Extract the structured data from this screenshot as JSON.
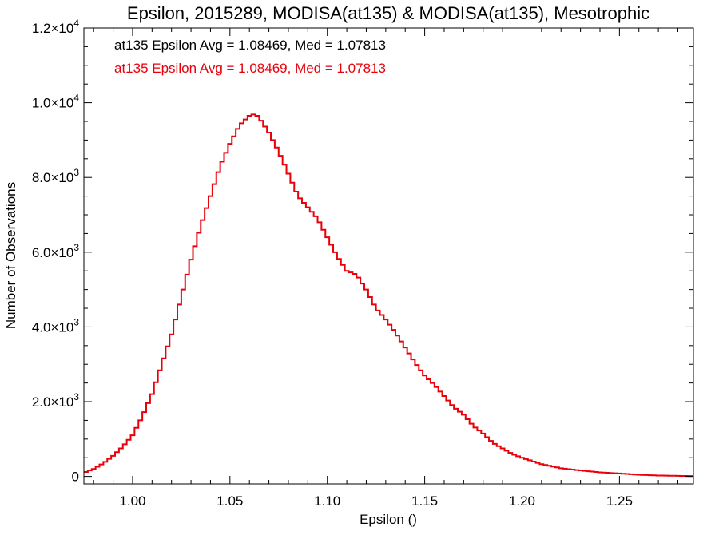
{
  "chart_data": {
    "type": "histogram",
    "title": "Epsilon, 2015289, MODISA(at135) & MODISA(at135), Mesotrophic",
    "xlabel": "Epsilon ()",
    "ylabel": "Number of Observations",
    "xlim": [
      0.975,
      1.288
    ],
    "ylim": [
      -200,
      12000
    ],
    "x_ticks": [
      {
        "value": 1.0,
        "label": "1.00"
      },
      {
        "value": 1.05,
        "label": "1.05"
      },
      {
        "value": 1.1,
        "label": "1.10"
      },
      {
        "value": 1.15,
        "label": "1.15"
      },
      {
        "value": 1.2,
        "label": "1.20"
      },
      {
        "value": 1.25,
        "label": "1.25"
      }
    ],
    "y_ticks": [
      {
        "value": 0,
        "mantissa": "0",
        "exponent": ""
      },
      {
        "value": 2000,
        "mantissa": "2.0×10",
        "exponent": "3"
      },
      {
        "value": 4000,
        "mantissa": "4.0×10",
        "exponent": "3"
      },
      {
        "value": 6000,
        "mantissa": "6.0×10",
        "exponent": "3"
      },
      {
        "value": 8000,
        "mantissa": "8.0×10",
        "exponent": "3"
      },
      {
        "value": 10000,
        "mantissa": "1.0×10",
        "exponent": "4"
      },
      {
        "value": 12000,
        "mantissa": "1.2×10",
        "exponent": "4"
      }
    ],
    "legend": [
      {
        "text": "at135 Epsilon Avg = 1.08469, Med = 1.07813",
        "color": "#000000"
      },
      {
        "text": "at135 Epsilon Avg = 1.08469, Med = 1.07813",
        "color": "#e8000b"
      }
    ],
    "series": [
      {
        "color": "#e8000b",
        "bin_width": 0.002,
        "bins_x": [
          0.975,
          0.98,
          0.985,
          0.99,
          0.995,
          1.0,
          1.005,
          1.01,
          1.015,
          1.02,
          1.025,
          1.03,
          1.035,
          1.04,
          1.045,
          1.05,
          1.055,
          1.06,
          1.063,
          1.065,
          1.07,
          1.075,
          1.08,
          1.085,
          1.09,
          1.095,
          1.1,
          1.105,
          1.11,
          1.115,
          1.12,
          1.125,
          1.13,
          1.135,
          1.14,
          1.145,
          1.15,
          1.155,
          1.16,
          1.165,
          1.17,
          1.175,
          1.18,
          1.185,
          1.19,
          1.195,
          1.2,
          1.21,
          1.22,
          1.23,
          1.24,
          1.25,
          1.26,
          1.27,
          1.288
        ],
        "counts": [
          100,
          200,
          350,
          550,
          800,
          1100,
          1600,
          2200,
          3000,
          3800,
          4800,
          5800,
          6700,
          7500,
          8300,
          8900,
          9400,
          9650,
          9700,
          9600,
          9200,
          8700,
          8100,
          7500,
          7200,
          6900,
          6400,
          5900,
          5500,
          5400,
          5000,
          4500,
          4200,
          3850,
          3450,
          3050,
          2700,
          2450,
          2150,
          1850,
          1650,
          1350,
          1150,
          900,
          750,
          600,
          500,
          330,
          220,
          160,
          110,
          80,
          45,
          25,
          10
        ]
      }
    ]
  }
}
